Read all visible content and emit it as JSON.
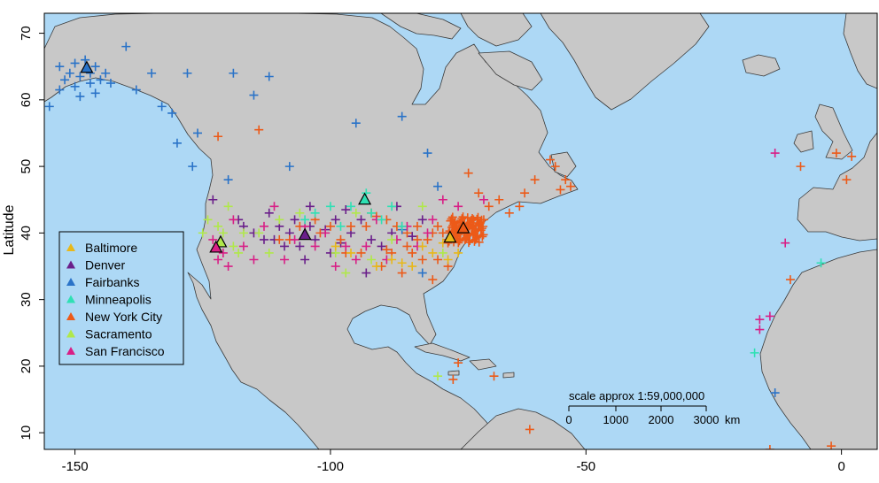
{
  "title": "",
  "colors": {
    "ocean": "#add8f5",
    "land": "#c8c8c8",
    "border": "#3a3a3a"
  },
  "axes": {
    "ylabel": "Latitude",
    "xlabel": "",
    "xlim": [
      -156,
      7
    ],
    "ylim": [
      7.5,
      73
    ],
    "xticks": [
      -150,
      -100,
      -50,
      0
    ],
    "yticks": [
      10,
      20,
      30,
      40,
      50,
      60,
      70
    ]
  },
  "legend": {
    "position": "left",
    "entries": [
      {
        "name": "Baltimore",
        "color": "#e8b81a"
      },
      {
        "name": "Denver",
        "color": "#6a1f8a"
      },
      {
        "name": "Fairbanks",
        "color": "#2a73c8"
      },
      {
        "name": "Minneapolis",
        "color": "#2fe0b4"
      },
      {
        "name": "New York City",
        "color": "#ec5a18"
      },
      {
        "name": "Sacramento",
        "color": "#b0e84a"
      },
      {
        "name": "San Francisco",
        "color": "#d81f86"
      }
    ]
  },
  "scale": {
    "label": "scale approx 1:59,000,000",
    "ticks": [
      0,
      1000,
      2000,
      3000
    ],
    "unit": "km"
  },
  "chart_data": {
    "type": "scatter",
    "title": "",
    "xlabel": "",
    "ylabel": "Latitude",
    "xlim": [
      -156,
      7
    ],
    "ylim": [
      7.5,
      73
    ],
    "cities": [
      {
        "name": "Baltimore",
        "lon": -76.6,
        "lat": 39.3
      },
      {
        "name": "Denver",
        "lon": -105.0,
        "lat": 39.7
      },
      {
        "name": "Fairbanks",
        "lon": -147.7,
        "lat": 64.8
      },
      {
        "name": "Minneapolis",
        "lon": -93.3,
        "lat": 45.0
      },
      {
        "name": "New York City",
        "lon": -74.0,
        "lat": 40.7
      },
      {
        "name": "Sacramento",
        "lon": -121.5,
        "lat": 38.6
      },
      {
        "name": "San Francisco",
        "lon": -122.4,
        "lat": 37.8
      }
    ],
    "series": [
      {
        "name": "Fairbanks",
        "points": [
          [
            -153,
            65
          ],
          [
            -151,
            64
          ],
          [
            -150,
            65.5
          ],
          [
            -149,
            63.5
          ],
          [
            -148,
            66
          ],
          [
            -147,
            64
          ],
          [
            -146,
            65
          ],
          [
            -145,
            63
          ],
          [
            -147,
            62.5
          ],
          [
            -150,
            62
          ],
          [
            -152,
            63
          ],
          [
            -144,
            64
          ],
          [
            -143,
            62.5
          ],
          [
            -146,
            61
          ],
          [
            -149,
            60.5
          ],
          [
            -153,
            61.5
          ],
          [
            -155,
            59
          ],
          [
            -140,
            68
          ],
          [
            -138,
            61.5
          ],
          [
            -135,
            64
          ],
          [
            -133,
            59
          ],
          [
            -131,
            58
          ],
          [
            -128,
            64
          ],
          [
            -119,
            64
          ],
          [
            -115,
            60.7
          ],
          [
            -112,
            63.5
          ],
          [
            -126,
            55
          ],
          [
            -130,
            53.5
          ],
          [
            -127,
            50
          ],
          [
            -120,
            48
          ],
          [
            -108,
            50
          ],
          [
            -95,
            56.5
          ],
          [
            -86,
            57.5
          ],
          [
            -81,
            52
          ],
          [
            -79,
            47
          ],
          [
            -86,
            40.5
          ],
          [
            -82,
            34
          ],
          [
            -13,
            16
          ]
        ]
      },
      {
        "name": "Denver",
        "points": [
          [
            -112,
            43
          ],
          [
            -110,
            41
          ],
          [
            -108,
            40
          ],
          [
            -107,
            42
          ],
          [
            -106,
            38
          ],
          [
            -104,
            41
          ],
          [
            -103,
            39
          ],
          [
            -101,
            40.5
          ],
          [
            -99,
            42
          ],
          [
            -98,
            38.5
          ],
          [
            -96,
            40
          ],
          [
            -94,
            42
          ],
          [
            -92,
            39
          ],
          [
            -90,
            38
          ],
          [
            -88,
            40
          ],
          [
            -86,
            41
          ],
          [
            -84,
            39.5
          ],
          [
            -82,
            42
          ],
          [
            -93,
            34
          ],
          [
            -97,
            43.5
          ],
          [
            -104,
            44
          ],
          [
            -109,
            38
          ],
          [
            -111,
            39
          ],
          [
            -113,
            39
          ],
          [
            -115,
            40
          ],
          [
            -117,
            41
          ],
          [
            -118,
            42
          ],
          [
            -105,
            36
          ],
          [
            -100,
            37
          ],
          [
            -87,
            44
          ],
          [
            -123,
            45
          ]
        ]
      },
      {
        "name": "New York City",
        "points": [
          [
            -74,
            40.5
          ],
          [
            -73,
            41
          ],
          [
            -72,
            42
          ],
          [
            -71,
            41.5
          ],
          [
            -70,
            42
          ],
          [
            -75,
            41
          ],
          [
            -76,
            40
          ],
          [
            -77,
            39
          ],
          [
            -78,
            40
          ],
          [
            -79,
            41
          ],
          [
            -80,
            40
          ],
          [
            -81,
            39
          ],
          [
            -83,
            39
          ],
          [
            -85,
            40
          ],
          [
            -87,
            41
          ],
          [
            -89,
            42
          ],
          [
            -91,
            42.5
          ],
          [
            -93,
            41
          ],
          [
            -96,
            41
          ],
          [
            -98,
            39
          ],
          [
            -100,
            41
          ],
          [
            -103,
            42
          ],
          [
            -106,
            41
          ],
          [
            -108,
            39
          ],
          [
            -110,
            39
          ],
          [
            -88,
            37
          ],
          [
            -84,
            37
          ],
          [
            -82,
            36
          ],
          [
            -79,
            36
          ],
          [
            -77,
            35
          ],
          [
            -80,
            33
          ],
          [
            -71,
            46
          ],
          [
            -73,
            49
          ],
          [
            -63,
            44
          ],
          [
            -62,
            46
          ],
          [
            -60,
            48
          ],
          [
            -56,
            50
          ],
          [
            -53,
            47
          ],
          [
            -54,
            48
          ],
          [
            -55,
            46.5
          ],
          [
            -57,
            51
          ],
          [
            -67,
            45
          ],
          [
            -65,
            43
          ],
          [
            -69,
            44
          ],
          [
            -68,
            18.5
          ],
          [
            -75,
            20.5
          ],
          [
            -76,
            18
          ],
          [
            -61,
            10.5
          ],
          [
            -122,
            54.5
          ],
          [
            -114,
            55.5
          ],
          [
            -102,
            40
          ],
          [
            -92,
            43
          ],
          [
            -94,
            37
          ],
          [
            -90,
            35
          ],
          [
            -85,
            38
          ],
          [
            -83,
            41
          ],
          [
            -86,
            34
          ],
          [
            -89,
            37.5
          ],
          [
            -97,
            37
          ],
          [
            -10,
            33
          ],
          [
            -8,
            50
          ],
          [
            2,
            51.5
          ],
          [
            1,
            48
          ],
          [
            -2,
            8
          ],
          [
            -14,
            7.5
          ],
          [
            -1,
            52
          ]
        ]
      },
      {
        "name": "San Francisco",
        "points": [
          [
            -123,
            39
          ],
          [
            -121,
            37
          ],
          [
            -122,
            36
          ],
          [
            -120,
            35
          ],
          [
            -119,
            42
          ],
          [
            -117,
            38
          ],
          [
            -115,
            36
          ],
          [
            -113,
            41
          ],
          [
            -111,
            44
          ],
          [
            -109,
            36
          ],
          [
            -107,
            39
          ],
          [
            -105,
            41
          ],
          [
            -103,
            38
          ],
          [
            -101,
            40
          ],
          [
            -99,
            35
          ],
          [
            -97,
            38
          ],
          [
            -95,
            36
          ],
          [
            -93,
            38
          ],
          [
            -91,
            42
          ],
          [
            -89,
            36
          ],
          [
            -87,
            39
          ],
          [
            -85,
            41
          ],
          [
            -83,
            38
          ],
          [
            -81,
            40
          ],
          [
            -80,
            42
          ],
          [
            -75,
            44
          ],
          [
            -70,
            45
          ],
          [
            -78,
            45
          ],
          [
            -16,
            27
          ],
          [
            -14,
            27.5
          ],
          [
            -11,
            38.5
          ],
          [
            -16,
            25.5
          ],
          [
            -13,
            52
          ]
        ]
      },
      {
        "name": "Sacramento",
        "points": [
          [
            -124,
            42
          ],
          [
            -122,
            41
          ],
          [
            -121,
            40
          ],
          [
            -119,
            38
          ],
          [
            -117,
            40
          ],
          [
            -114,
            40
          ],
          [
            -112,
            37
          ],
          [
            -110,
            42
          ],
          [
            -106,
            43
          ],
          [
            -99,
            37
          ],
          [
            -97,
            34
          ],
          [
            -95,
            43
          ],
          [
            -92,
            36
          ],
          [
            -88,
            39
          ],
          [
            -82,
            44
          ],
          [
            -78,
            37
          ],
          [
            -120,
            44
          ],
          [
            -118,
            37
          ],
          [
            -125,
            40
          ],
          [
            -79,
            18.5
          ]
        ]
      },
      {
        "name": "Minneapolis",
        "points": [
          [
            -92,
            43
          ],
          [
            -90,
            42
          ],
          [
            -88,
            44
          ],
          [
            -86,
            41
          ],
          [
            -98,
            41
          ],
          [
            -100,
            44
          ],
          [
            -103,
            43
          ],
          [
            -105,
            42
          ],
          [
            -93,
            46
          ],
          [
            -96,
            44
          ],
          [
            -17,
            22
          ],
          [
            -4,
            35.5
          ]
        ]
      },
      {
        "name": "Baltimore",
        "points": [
          [
            -78,
            38.5
          ],
          [
            -80,
            37
          ],
          [
            -82,
            38
          ],
          [
            -84,
            35
          ],
          [
            -86,
            35.5
          ],
          [
            -88,
            36
          ],
          [
            -91,
            35
          ],
          [
            -96,
            37
          ],
          [
            -99,
            38
          ],
          [
            -77,
            36
          ],
          [
            -75,
            37
          ]
        ]
      }
    ]
  }
}
